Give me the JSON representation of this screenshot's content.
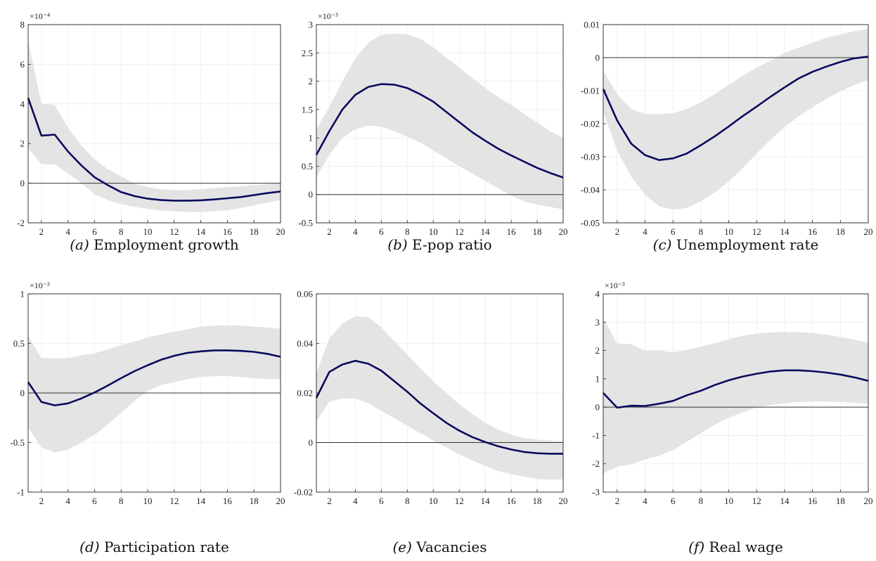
{
  "chart_data": [
    {
      "type": "line",
      "caption_label": "(a)",
      "caption_text": "Employment growth",
      "exponent": "×10⁻⁴",
      "xlim": [
        1,
        20
      ],
      "ylim": [
        -2,
        8
      ],
      "xticks": [
        2,
        4,
        6,
        8,
        10,
        12,
        14,
        16,
        18,
        20
      ],
      "yticks": [
        -2,
        0,
        2,
        4,
        6,
        8
      ],
      "ytick_labels": [
        "-2",
        "0",
        "2",
        "4",
        "6",
        "8"
      ],
      "x": [
        1,
        2,
        3,
        4,
        5,
        6,
        7,
        8,
        9,
        10,
        11,
        12,
        13,
        14,
        15,
        16,
        17,
        18,
        19,
        20
      ],
      "series": [
        {
          "values": [
            4.3,
            2.4,
            2.45,
            1.6,
            0.9,
            0.3,
            -0.1,
            -0.45,
            -0.65,
            -0.78,
            -0.85,
            -0.88,
            -0.88,
            -0.86,
            -0.82,
            -0.76,
            -0.7,
            -0.6,
            -0.5,
            -0.42
          ]
        }
      ],
      "band_upper": [
        7.2,
        4.0,
        3.95,
        2.8,
        1.9,
        1.2,
        0.7,
        0.35,
        0.0,
        -0.2,
        -0.3,
        -0.35,
        -0.35,
        -0.3,
        -0.25,
        -0.2,
        -0.15,
        -0.1,
        -0.05,
        0.0
      ],
      "band_lower": [
        1.75,
        0.95,
        0.95,
        0.5,
        0.0,
        -0.55,
        -0.85,
        -1.05,
        -1.2,
        -1.3,
        -1.38,
        -1.42,
        -1.45,
        -1.45,
        -1.42,
        -1.36,
        -1.25,
        -1.12,
        -0.98,
        -0.85
      ],
      "zero_line": 0
    },
    {
      "type": "line",
      "caption_label": "(b)",
      "caption_text": "E-pop ratio",
      "exponent": "×10⁻³",
      "xlim": [
        1,
        20
      ],
      "ylim": [
        -0.5,
        3
      ],
      "xticks": [
        2,
        4,
        6,
        8,
        10,
        12,
        14,
        16,
        18,
        20
      ],
      "yticks": [
        -0.5,
        0,
        0.5,
        1,
        1.5,
        2,
        2.5,
        3
      ],
      "ytick_labels": [
        "-0.5",
        "0",
        "0.5",
        "1",
        "1.5",
        "2",
        "2.5",
        "3"
      ],
      "x": [
        1,
        2,
        3,
        4,
        5,
        6,
        7,
        8,
        9,
        10,
        11,
        12,
        13,
        14,
        15,
        16,
        17,
        18,
        19,
        20
      ],
      "series": [
        {
          "values": [
            0.7,
            1.12,
            1.5,
            1.76,
            1.9,
            1.95,
            1.94,
            1.88,
            1.77,
            1.64,
            1.46,
            1.28,
            1.1,
            0.95,
            0.81,
            0.69,
            0.58,
            0.47,
            0.38,
            0.3
          ]
        }
      ],
      "band_upper": [
        1.15,
        1.55,
        2.0,
        2.4,
        2.68,
        2.82,
        2.84,
        2.83,
        2.75,
        2.6,
        2.42,
        2.24,
        2.06,
        1.88,
        1.72,
        1.58,
        1.42,
        1.27,
        1.12,
        1.0
      ],
      "band_lower": [
        0.3,
        0.7,
        1.0,
        1.15,
        1.22,
        1.2,
        1.12,
        1.02,
        0.92,
        0.78,
        0.64,
        0.5,
        0.37,
        0.24,
        0.11,
        -0.02,
        -0.12,
        -0.18,
        -0.22,
        -0.26
      ],
      "zero_line": 0
    },
    {
      "type": "line",
      "caption_label": "(c)",
      "caption_text": "Unemployment rate",
      "exponent": "",
      "xlim": [
        1,
        20
      ],
      "ylim": [
        -0.05,
        0.01
      ],
      "xticks": [
        2,
        4,
        6,
        8,
        10,
        12,
        14,
        16,
        18,
        20
      ],
      "yticks": [
        -0.05,
        -0.04,
        -0.03,
        -0.02,
        -0.01,
        0,
        0.01
      ],
      "ytick_labels": [
        "-0.05",
        "-0.04",
        "-0.03",
        "-0.02",
        "-0.01",
        "0",
        "0.01"
      ],
      "x": [
        1,
        2,
        3,
        4,
        5,
        6,
        7,
        8,
        9,
        10,
        11,
        12,
        13,
        14,
        15,
        16,
        17,
        18,
        19,
        20
      ],
      "series": [
        {
          "values": [
            -0.0095,
            -0.019,
            -0.026,
            -0.0295,
            -0.031,
            -0.0305,
            -0.029,
            -0.0265,
            -0.0238,
            -0.0208,
            -0.0177,
            -0.0148,
            -0.0118,
            -0.009,
            -0.0063,
            -0.0043,
            -0.0027,
            -0.0013,
            -0.0002,
            0.0003
          ]
        }
      ],
      "band_upper": [
        -0.004,
        -0.011,
        -0.0155,
        -0.017,
        -0.0172,
        -0.0168,
        -0.0155,
        -0.0135,
        -0.011,
        -0.0082,
        -0.0055,
        -0.003,
        -0.0008,
        0.0015,
        0.003,
        0.0045,
        0.006,
        0.007,
        0.008,
        0.0088
      ],
      "band_lower": [
        -0.0165,
        -0.028,
        -0.036,
        -0.0415,
        -0.045,
        -0.046,
        -0.0455,
        -0.0435,
        -0.0408,
        -0.0375,
        -0.0335,
        -0.029,
        -0.0248,
        -0.021,
        -0.0178,
        -0.015,
        -0.0125,
        -0.0102,
        -0.0083,
        -0.0068
      ],
      "zero_line": 0
    },
    {
      "type": "line",
      "caption_label": "(d)",
      "caption_text": "Participation rate",
      "exponent": "×10⁻³",
      "xlim": [
        1,
        20
      ],
      "ylim": [
        -1,
        1
      ],
      "xticks": [
        2,
        4,
        6,
        8,
        10,
        12,
        14,
        16,
        18,
        20
      ],
      "yticks": [
        -1,
        -0.5,
        0,
        0.5,
        1
      ],
      "ytick_labels": [
        "-1",
        "-0.5",
        "0",
        "0.5",
        "1"
      ],
      "x": [
        1,
        2,
        3,
        4,
        5,
        6,
        7,
        8,
        9,
        10,
        11,
        12,
        13,
        14,
        15,
        16,
        17,
        18,
        19,
        20
      ],
      "series": [
        {
          "values": [
            0.11,
            -0.09,
            -0.125,
            -0.105,
            -0.055,
            0.005,
            0.075,
            0.15,
            0.22,
            0.28,
            0.335,
            0.375,
            0.405,
            0.42,
            0.43,
            0.43,
            0.425,
            0.415,
            0.395,
            0.365
          ]
        }
      ],
      "band_upper": [
        0.58,
        0.35,
        0.35,
        0.35,
        0.38,
        0.4,
        0.44,
        0.48,
        0.52,
        0.56,
        0.59,
        0.62,
        0.64,
        0.67,
        0.68,
        0.68,
        0.68,
        0.67,
        0.66,
        0.65
      ],
      "band_lower": [
        -0.35,
        -0.55,
        -0.6,
        -0.57,
        -0.5,
        -0.42,
        -0.32,
        -0.2,
        -0.08,
        0.02,
        0.08,
        0.11,
        0.14,
        0.16,
        0.17,
        0.17,
        0.16,
        0.15,
        0.14,
        0.14
      ],
      "zero_line": 0
    },
    {
      "type": "line",
      "caption_label": "(e)",
      "caption_text": "Vacancies",
      "exponent": "",
      "xlim": [
        1,
        20
      ],
      "ylim": [
        -0.02,
        0.06
      ],
      "xticks": [
        2,
        4,
        6,
        8,
        10,
        12,
        14,
        16,
        18,
        20
      ],
      "yticks": [
        -0.02,
        0,
        0.02,
        0.04,
        0.06
      ],
      "ytick_labels": [
        "-0.02",
        "0",
        "0.02",
        "0.04",
        "0.06"
      ],
      "x": [
        1,
        2,
        3,
        4,
        5,
        6,
        7,
        8,
        9,
        10,
        11,
        12,
        13,
        14,
        15,
        16,
        17,
        18,
        19,
        20
      ],
      "series": [
        {
          "values": [
            0.018,
            0.0285,
            0.0315,
            0.033,
            0.0318,
            0.029,
            0.0248,
            0.0205,
            0.0158,
            0.0118,
            0.008,
            0.0048,
            0.0022,
            0.0002,
            -0.0015,
            -0.0028,
            -0.0038,
            -0.0043,
            -0.0045,
            -0.0045
          ]
        }
      ],
      "band_upper": [
        0.028,
        0.042,
        0.048,
        0.051,
        0.0505,
        0.0465,
        0.041,
        0.0355,
        0.03,
        0.0248,
        0.02,
        0.0155,
        0.0115,
        0.008,
        0.0052,
        0.0032,
        0.0018,
        0.0012,
        0.0008,
        0.0005
      ],
      "band_lower": [
        0.0085,
        0.0165,
        0.0178,
        0.0178,
        0.0158,
        0.0128,
        0.0098,
        0.0068,
        0.0038,
        0.0008,
        -0.002,
        -0.0048,
        -0.0072,
        -0.0095,
        -0.0115,
        -0.0128,
        -0.0138,
        -0.0147,
        -0.015,
        -0.0148
      ],
      "zero_line": 0
    },
    {
      "type": "line",
      "caption_label": "(f)",
      "caption_text": "Real wage",
      "exponent": "×10⁻³",
      "xlim": [
        1,
        20
      ],
      "ylim": [
        -3,
        4
      ],
      "xticks": [
        2,
        4,
        6,
        8,
        10,
        12,
        14,
        16,
        18,
        20
      ],
      "yticks": [
        -3,
        -2,
        -1,
        0,
        1,
        2,
        3,
        4
      ],
      "ytick_labels": [
        "-3",
        "-2",
        "-1",
        "0",
        "1",
        "2",
        "3",
        "4"
      ],
      "x": [
        1,
        2,
        3,
        4,
        5,
        6,
        7,
        8,
        9,
        10,
        11,
        12,
        13,
        14,
        15,
        16,
        17,
        18,
        19,
        20
      ],
      "series": [
        {
          "values": [
            0.5,
            -0.02,
            0.05,
            0.04,
            0.12,
            0.22,
            0.42,
            0.58,
            0.78,
            0.95,
            1.08,
            1.18,
            1.26,
            1.3,
            1.3,
            1.27,
            1.22,
            1.15,
            1.05,
            0.93
          ]
        }
      ],
      "band_upper": [
        3.15,
        2.25,
        2.22,
        2.0,
        2.0,
        1.93,
        2.02,
        2.14,
        2.26,
        2.4,
        2.52,
        2.6,
        2.64,
        2.65,
        2.65,
        2.62,
        2.56,
        2.48,
        2.38,
        2.28
      ],
      "band_lower": [
        -2.35,
        -2.1,
        -2.02,
        -1.85,
        -1.72,
        -1.52,
        -1.22,
        -0.92,
        -0.62,
        -0.38,
        -0.18,
        -0.02,
        0.08,
        0.14,
        0.18,
        0.2,
        0.2,
        0.18,
        0.15,
        0.12
      ],
      "zero_line": 0
    }
  ],
  "colors": {
    "line": "#0a0a5e",
    "band": "#e4e4e4",
    "zero_line": "#333333",
    "grid": "#ececec",
    "axis": "#222222"
  }
}
